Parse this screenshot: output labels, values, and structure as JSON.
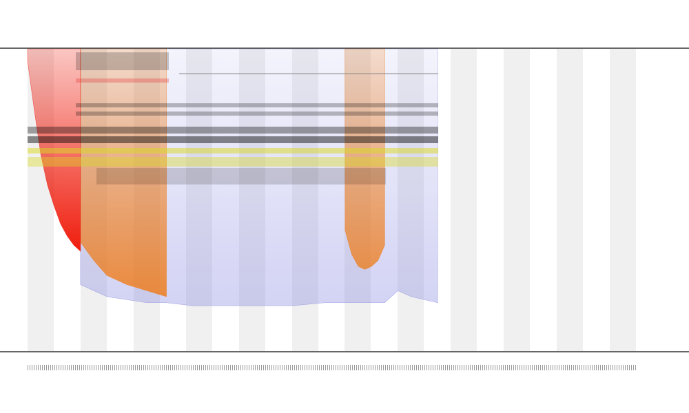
{
  "chart_data": {
    "type": "area",
    "x": [
      0,
      1,
      2,
      3,
      4,
      5,
      6,
      7,
      8,
      10,
      12,
      15,
      18,
      21,
      25,
      30,
      35,
      40,
      45,
      48,
      49,
      50,
      51,
      52,
      53,
      54,
      56,
      58,
      60,
      62
    ],
    "xlim": [
      0,
      100
    ],
    "ylim": [
      0,
      100
    ],
    "series": [
      {
        "color": "#8080e0",
        "values": [
          null,
          null,
          null,
          null,
          null,
          null,
          null,
          null,
          22,
          20,
          18,
          17,
          16,
          16,
          15,
          15,
          15,
          15,
          16,
          16,
          16,
          16,
          16,
          16,
          16,
          16,
          20,
          18,
          17,
          16
        ]
      },
      {
        "color": "#f07810",
        "values": [
          null,
          null,
          null,
          null,
          null,
          null,
          null,
          null,
          36,
          30,
          25,
          22,
          20,
          18,
          null,
          null,
          null,
          null,
          null,
          40,
          32,
          28,
          27,
          28,
          30,
          35,
          null,
          null,
          null,
          null
        ]
      },
      {
        "color": "#ee1100",
        "values": [
          96,
          80,
          65,
          55,
          48,
          42,
          38,
          35,
          33,
          null,
          null,
          null,
          null,
          null,
          null,
          null,
          null,
          null,
          null,
          null,
          null,
          null,
          null,
          null,
          null,
          null,
          null,
          null,
          null,
          null
        ]
      }
    ]
  }
}
